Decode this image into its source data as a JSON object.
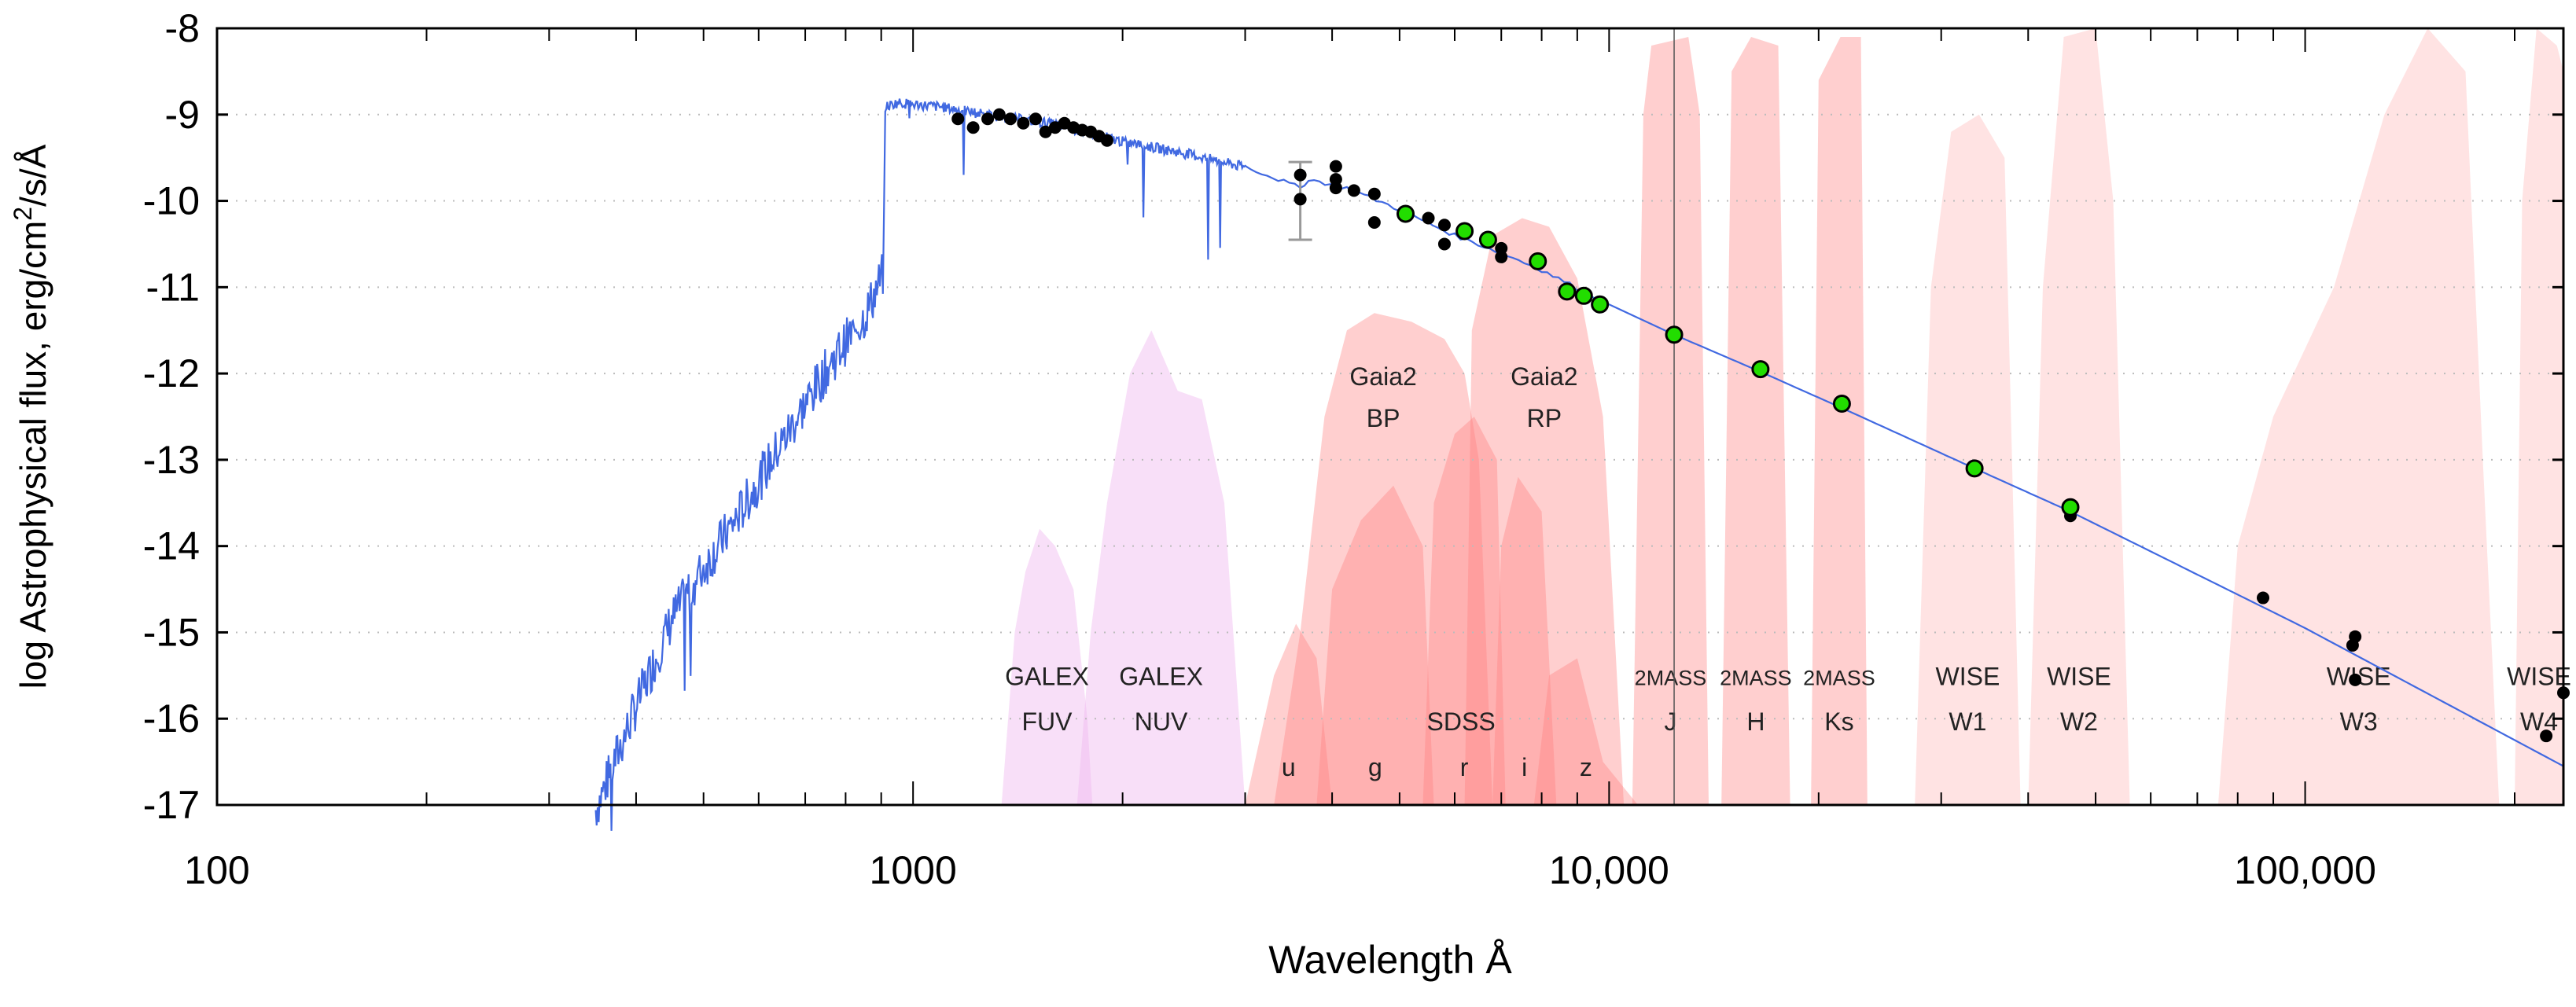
{
  "chart_data": {
    "type": "scatter",
    "title": "",
    "xlabel": "Wavelength Å",
    "ylabel": "log Astrophysical flux, erg/cm²/s/Å",
    "ylabel_parts": {
      "main": "log Astrophysical flux, erg/cm",
      "sup": "2",
      "tail": "/s/Å"
    },
    "xscale": "log",
    "xlim": [
      100,
      235000
    ],
    "ylim": [
      -17,
      -8
    ],
    "grid": "horizontal dotted",
    "x_ticks": [
      {
        "v": 100,
        "label": "100"
      },
      {
        "v": 1000,
        "label": "1000"
      },
      {
        "v": 10000,
        "label": "10,000"
      },
      {
        "v": 100000,
        "label": "100,000"
      }
    ],
    "y_ticks": [
      {
        "v": -8,
        "label": "-8"
      },
      {
        "v": -9,
        "label": "-9"
      },
      {
        "v": -10,
        "label": "-10"
      },
      {
        "v": -11,
        "label": "-11"
      },
      {
        "v": -12,
        "label": "-12"
      },
      {
        "v": -13,
        "label": "-13"
      },
      {
        "v": -14,
        "label": "-14"
      },
      {
        "v": -15,
        "label": "-15"
      },
      {
        "v": -16,
        "label": "-16"
      },
      {
        "v": -17,
        "label": "-17"
      }
    ],
    "colors": {
      "model": "#4169e1",
      "phot_black": "#000000",
      "phot_green": "#22dd00",
      "galex": "#f0b8f0",
      "red_band": "#ff8080",
      "wise": "#ffc8c8",
      "errorbar": "#999999"
    },
    "model_spectrum": {
      "name": "model",
      "points": [
        [
          350,
          -17
        ],
        [
          400,
          -15.8
        ],
        [
          450,
          -14.8
        ],
        [
          500,
          -14.2
        ],
        [
          560,
          -13.6
        ],
        [
          620,
          -13.0
        ],
        [
          700,
          -12.3
        ],
        [
          780,
          -11.7
        ],
        [
          850,
          -11.3
        ],
        [
          905,
          -10.8
        ],
        [
          912,
          -8.9
        ],
        [
          950,
          -8.85
        ],
        [
          1100,
          -8.9
        ],
        [
          1300,
          -9.0
        ],
        [
          1600,
          -9.1
        ],
        [
          2000,
          -9.3
        ],
        [
          2500,
          -9.45
        ],
        [
          3000,
          -9.6
        ],
        [
          3600,
          -9.85
        ],
        [
          3700,
          -9.75
        ],
        [
          4200,
          -9.85
        ],
        [
          5000,
          -10.1
        ],
        [
          6000,
          -10.4
        ],
        [
          7000,
          -10.6
        ],
        [
          8000,
          -10.8
        ],
        [
          10000,
          -11.2
        ],
        [
          12400,
          -11.55
        ],
        [
          16500,
          -11.98
        ],
        [
          21600,
          -12.4
        ],
        [
          33500,
          -13.1
        ],
        [
          46000,
          -13.6
        ],
        [
          100000,
          -14.95
        ],
        [
          235000,
          -16.55
        ]
      ]
    },
    "photometry_black": [
      [
        1160,
        -9.05
      ],
      [
        1220,
        -9.15
      ],
      [
        1280,
        -9.05
      ],
      [
        1330,
        -9.0
      ],
      [
        1380,
        -9.05
      ],
      [
        1440,
        -9.1
      ],
      [
        1500,
        -9.05
      ],
      [
        1550,
        -9.2
      ],
      [
        1600,
        -9.15
      ],
      [
        1650,
        -9.1
      ],
      [
        1700,
        -9.15
      ],
      [
        1750,
        -9.18
      ],
      [
        1800,
        -9.2
      ],
      [
        1850,
        -9.25
      ],
      [
        1900,
        -9.3
      ],
      [
        3600,
        -9.7
      ],
      [
        3600,
        -9.98
      ],
      [
        4050,
        -9.6
      ],
      [
        4050,
        -9.75
      ],
      [
        4050,
        -9.85
      ],
      [
        4300,
        -9.88
      ],
      [
        4600,
        -9.92
      ],
      [
        4600,
        -10.25
      ],
      [
        5500,
        -10.2
      ],
      [
        5800,
        -10.28
      ],
      [
        5800,
        -10.5
      ],
      [
        7000,
        -10.55
      ],
      [
        7000,
        -10.65
      ],
      [
        46000,
        -13.65
      ],
      [
        87000,
        -14.6
      ],
      [
        118000,
        -15.05
      ],
      [
        117000,
        -15.15
      ],
      [
        118000,
        -15.55
      ],
      [
        222000,
        -16.2
      ],
      [
        235000,
        -15.7
      ]
    ],
    "photometry_green": [
      [
        5100,
        -10.15
      ],
      [
        6200,
        -10.35
      ],
      [
        6700,
        -10.45
      ],
      [
        7900,
        -10.7
      ],
      [
        8700,
        -11.05
      ],
      [
        9200,
        -11.1
      ],
      [
        9700,
        -11.2
      ],
      [
        12400,
        -11.55
      ],
      [
        16500,
        -11.95
      ],
      [
        21600,
        -12.35
      ],
      [
        33500,
        -13.1
      ],
      [
        46000,
        -13.55
      ]
    ],
    "error_bars": [
      {
        "x": 3600,
        "low": -10.45,
        "high": -9.55
      }
    ],
    "vertical_line": 12400,
    "filters": [
      {
        "name": "GALEX FUV",
        "l1": "GALEX",
        "l2": "FUV",
        "group": "galex",
        "curve": [
          [
            1340,
            -17
          ],
          [
            1400,
            -15
          ],
          [
            1450,
            -14.3
          ],
          [
            1520,
            -13.8
          ],
          [
            1600,
            -14.0
          ],
          [
            1700,
            -14.5
          ],
          [
            1780,
            -16
          ],
          [
            1810,
            -17
          ]
        ]
      },
      {
        "name": "GALEX NUV",
        "l1": "GALEX",
        "l2": "NUV",
        "group": "galex",
        "curve": [
          [
            1720,
            -17
          ],
          [
            1800,
            -15
          ],
          [
            1900,
            -13.5
          ],
          [
            2050,
            -12
          ],
          [
            2200,
            -11.5
          ],
          [
            2400,
            -12.2
          ],
          [
            2600,
            -12.3
          ],
          [
            2800,
            -13.5
          ],
          [
            3000,
            -17
          ]
        ]
      },
      {
        "name": "Gaia2 BP",
        "l1": "Gaia2",
        "l2": "BP",
        "group": "red",
        "labelY": -12,
        "curve": [
          [
            3300,
            -17
          ],
          [
            3600,
            -15
          ],
          [
            3900,
            -12.5
          ],
          [
            4200,
            -11.5
          ],
          [
            4600,
            -11.3
          ],
          [
            5200,
            -11.4
          ],
          [
            5800,
            -11.6
          ],
          [
            6200,
            -12
          ],
          [
            6500,
            -13
          ],
          [
            6800,
            -17
          ]
        ]
      },
      {
        "name": "Gaia2 RP",
        "l1": "Gaia2",
        "l2": "RP",
        "group": "red",
        "labelY": -12,
        "curve": [
          [
            6200,
            -17
          ],
          [
            6350,
            -11.5
          ],
          [
            6800,
            -10.4
          ],
          [
            7500,
            -10.2
          ],
          [
            8200,
            -10.3
          ],
          [
            9000,
            -10.9
          ],
          [
            9800,
            -12.5
          ],
          [
            10500,
            -17
          ]
        ]
      },
      {
        "name": "SDSS u",
        "l1": "",
        "l2": "u",
        "group": "red",
        "curve": [
          [
            3000,
            -17
          ],
          [
            3300,
            -15.5
          ],
          [
            3550,
            -14.9
          ],
          [
            3800,
            -15.3
          ],
          [
            4000,
            -17
          ]
        ]
      },
      {
        "name": "SDSS g",
        "l1": "",
        "l2": "g",
        "group": "red",
        "curve": [
          [
            3800,
            -17
          ],
          [
            4000,
            -14.5
          ],
          [
            4400,
            -13.7
          ],
          [
            4900,
            -13.3
          ],
          [
            5400,
            -14
          ],
          [
            5600,
            -17
          ]
        ]
      },
      {
        "name": "SDSS r",
        "l1": "SDSS",
        "l2": "r",
        "group": "red",
        "curve": [
          [
            5400,
            -17
          ],
          [
            5600,
            -13.5
          ],
          [
            6000,
            -12.7
          ],
          [
            6400,
            -12.5
          ],
          [
            6900,
            -13
          ],
          [
            7100,
            -17
          ]
        ]
      },
      {
        "name": "SDSS i",
        "l1": "",
        "l2": "i",
        "group": "red",
        "curve": [
          [
            6800,
            -17
          ],
          [
            7000,
            -14
          ],
          [
            7400,
            -13.2
          ],
          [
            8000,
            -13.6
          ],
          [
            8400,
            -17
          ]
        ]
      },
      {
        "name": "SDSS z",
        "l1": "",
        "l2": "z",
        "group": "red",
        "curve": [
          [
            7800,
            -17
          ],
          [
            8200,
            -15.5
          ],
          [
            9000,
            -15.3
          ],
          [
            9800,
            -16.5
          ],
          [
            11000,
            -17
          ]
        ]
      },
      {
        "name": "2MASS J",
        "l1": "2MASS",
        "l2": "J",
        "group": "red",
        "curve": [
          [
            10800,
            -17
          ],
          [
            11200,
            -9
          ],
          [
            11500,
            -8.2
          ],
          [
            13000,
            -8.1
          ],
          [
            13500,
            -9
          ],
          [
            13900,
            -17
          ]
        ]
      },
      {
        "name": "2MASS H",
        "l1": "2MASS",
        "l2": "H",
        "group": "red",
        "curve": [
          [
            14500,
            -17
          ],
          [
            15000,
            -8.5
          ],
          [
            16000,
            -8.1
          ],
          [
            17500,
            -8.2
          ],
          [
            18200,
            -17
          ]
        ]
      },
      {
        "name": "2MASS Ks",
        "l1": "2MASS",
        "l2": "Ks",
        "group": "red",
        "curve": [
          [
            19500,
            -17
          ],
          [
            20000,
            -8.6
          ],
          [
            21500,
            -8.1
          ],
          [
            23000,
            -8.1
          ],
          [
            23500,
            -17
          ]
        ]
      },
      {
        "name": "WISE W1",
        "l1": "WISE",
        "l2": "W1",
        "group": "wise",
        "curve": [
          [
            27500,
            -17
          ],
          [
            29000,
            -11
          ],
          [
            31000,
            -9.2
          ],
          [
            34000,
            -9.0
          ],
          [
            37000,
            -9.5
          ],
          [
            39000,
            -17
          ]
        ]
      },
      {
        "name": "WISE W2",
        "l1": "WISE",
        "l2": "W2",
        "group": "wise",
        "curve": [
          [
            40000,
            -17
          ],
          [
            42000,
            -11
          ],
          [
            45000,
            -8.1
          ],
          [
            50000,
            -8.0
          ],
          [
            53000,
            -10
          ],
          [
            56000,
            -17
          ]
        ]
      },
      {
        "name": "WISE W3",
        "l1": "WISE",
        "l2": "W3",
        "group": "wise",
        "curve": [
          [
            75000,
            -17
          ],
          [
            80000,
            -14
          ],
          [
            90000,
            -12.5
          ],
          [
            110000,
            -11
          ],
          [
            130000,
            -9
          ],
          [
            150000,
            -8
          ],
          [
            170000,
            -8.5
          ],
          [
            180000,
            -13
          ],
          [
            190000,
            -17
          ]
        ]
      },
      {
        "name": "WISE W4",
        "l1": "WISE",
        "l2": "W4",
        "group": "wise",
        "curve": [
          [
            200000,
            -17
          ],
          [
            205000,
            -10
          ],
          [
            215000,
            -8
          ],
          [
            230000,
            -8.2
          ],
          [
            235000,
            -8.5
          ],
          [
            235000,
            -17
          ]
        ]
      }
    ]
  }
}
